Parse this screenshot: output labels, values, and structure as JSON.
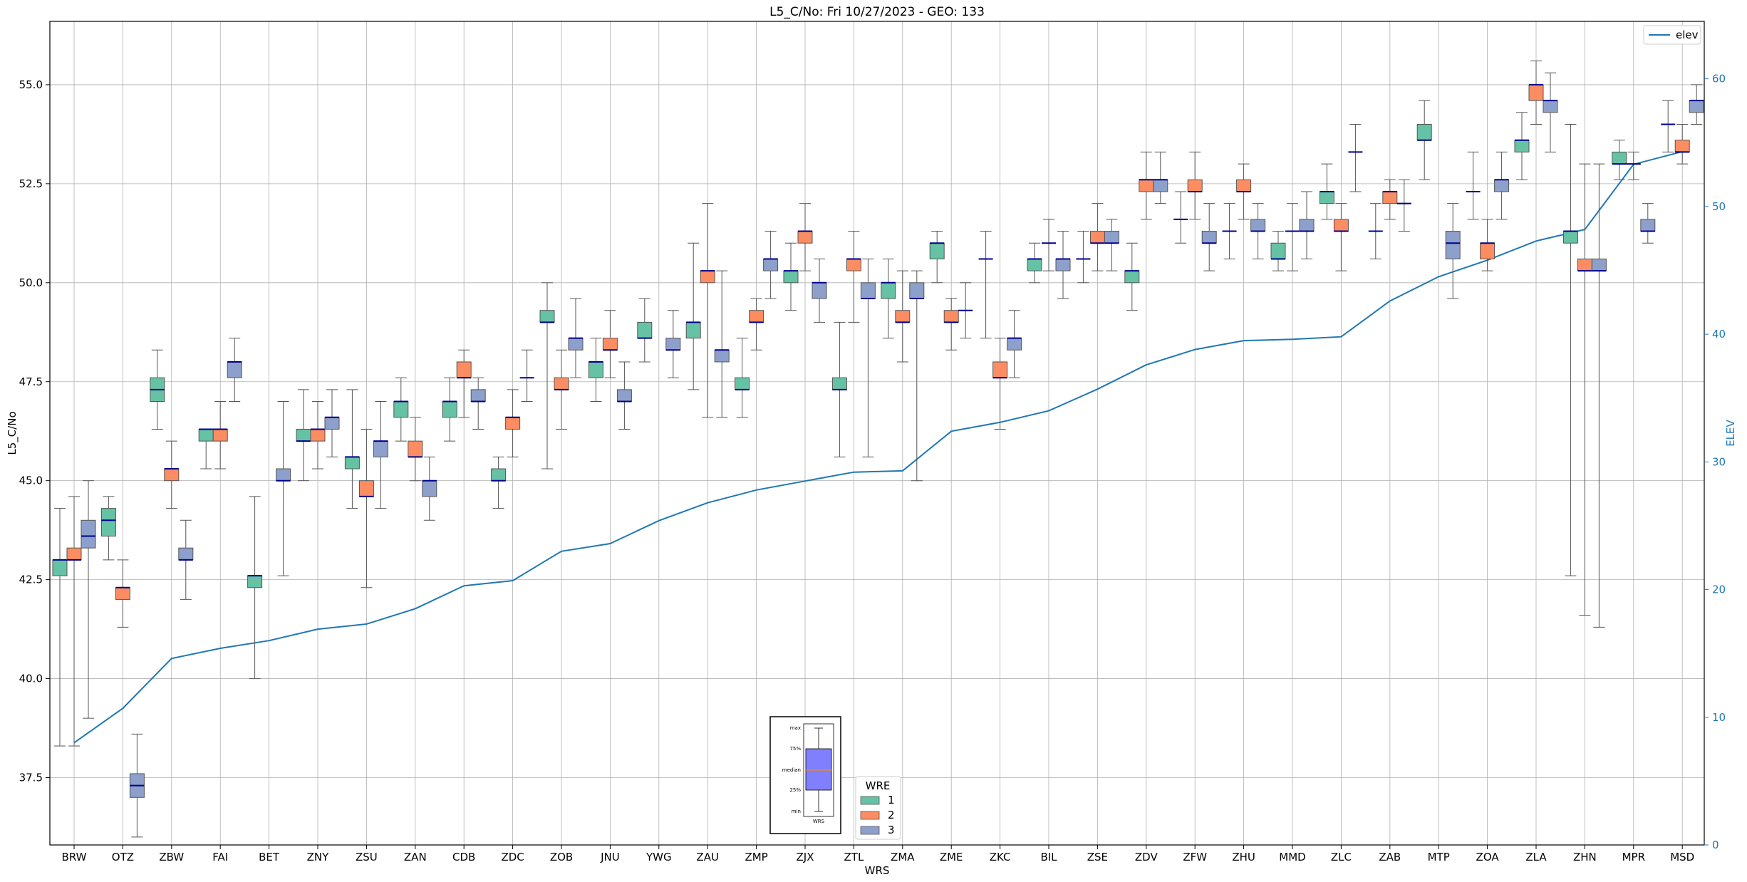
{
  "chart_data": {
    "type": "box",
    "title": "L5_C/No: Fri 10/27/2023 - GEO: 133",
    "xlabel": "WRS",
    "ylabel": "L5_C/No",
    "y2label": "ELEV",
    "ylim": [
      35.8,
      56.6
    ],
    "y2lim": [
      0,
      64.5
    ],
    "yticks": [
      "37.5",
      "40.0",
      "42.5",
      "45.0",
      "47.5",
      "50.0",
      "52.5",
      "55.0"
    ],
    "y2ticks": [
      "0",
      "10",
      "20",
      "30",
      "40",
      "50",
      "60"
    ],
    "grid": true,
    "categories": [
      "BRW",
      "OTZ",
      "ZBW",
      "FAI",
      "BET",
      "ZNY",
      "ZSU",
      "ZAN",
      "CDB",
      "ZDC",
      "ZOB",
      "JNU",
      "YWG",
      "ZAU",
      "ZMP",
      "ZJX",
      "ZTL",
      "ZMA",
      "ZME",
      "ZKC",
      "BIL",
      "ZSE",
      "ZDV",
      "ZFW",
      "ZHU",
      "MMD",
      "ZLC",
      "ZAB",
      "MTP",
      "ZOA",
      "ZLA",
      "ZHN",
      "MPR",
      "MSD"
    ],
    "series_colors": {
      "1": "#66c2a5",
      "2": "#fc8d62",
      "3": "#8da0cb"
    },
    "boxes": [
      {
        "station": "BRW",
        "wre": 1,
        "min": 38.3,
        "q1": 42.6,
        "median": 43.0,
        "q3": 43.0,
        "max": 44.3
      },
      {
        "station": "BRW",
        "wre": 2,
        "min": 38.3,
        "q1": 43.0,
        "median": 43.0,
        "q3": 43.3,
        "max": 44.6
      },
      {
        "station": "BRW",
        "wre": 3,
        "min": 39.0,
        "q1": 43.3,
        "median": 43.6,
        "q3": 44.0,
        "max": 45.0
      },
      {
        "station": "OTZ",
        "wre": 1,
        "min": 43.0,
        "q1": 43.6,
        "median": 44.0,
        "q3": 44.3,
        "max": 44.6
      },
      {
        "station": "OTZ",
        "wre": 2,
        "min": 41.3,
        "q1": 42.0,
        "median": 42.3,
        "q3": 42.3,
        "max": 43.0
      },
      {
        "station": "OTZ",
        "wre": 3,
        "min": 36.0,
        "q1": 37.0,
        "median": 37.3,
        "q3": 37.6,
        "max": 38.6
      },
      {
        "station": "ZBW",
        "wre": 1,
        "min": 46.3,
        "q1": 47.0,
        "median": 47.3,
        "q3": 47.6,
        "max": 48.3
      },
      {
        "station": "ZBW",
        "wre": 2,
        "min": 44.3,
        "q1": 45.0,
        "median": 45.3,
        "q3": 45.3,
        "max": 46.0
      },
      {
        "station": "ZBW",
        "wre": 3,
        "min": 42.0,
        "q1": 43.0,
        "median": 43.0,
        "q3": 43.3,
        "max": 44.0
      },
      {
        "station": "FAI",
        "wre": 1,
        "min": 45.3,
        "q1": 46.0,
        "median": 46.3,
        "q3": 46.3,
        "max": 46.3
      },
      {
        "station": "FAI",
        "wre": 2,
        "min": 45.3,
        "q1": 46.0,
        "median": 46.3,
        "q3": 46.3,
        "max": 47.0
      },
      {
        "station": "FAI",
        "wre": 3,
        "min": 47.0,
        "q1": 47.6,
        "median": 48.0,
        "q3": 48.0,
        "max": 48.6
      },
      {
        "station": "BET",
        "wre": 1,
        "min": 40.0,
        "q1": 42.3,
        "median": 42.6,
        "q3": 42.6,
        "max": 44.6
      },
      {
        "station": "BET",
        "wre": 3,
        "min": 42.6,
        "q1": 45.0,
        "median": 45.0,
        "q3": 45.3,
        "max": 47.0
      },
      {
        "station": "ZNY",
        "wre": 1,
        "min": 45.0,
        "q1": 46.0,
        "median": 46.0,
        "q3": 46.3,
        "max": 47.3
      },
      {
        "station": "ZNY",
        "wre": 2,
        "min": 45.3,
        "q1": 46.0,
        "median": 46.3,
        "q3": 46.3,
        "max": 47.0
      },
      {
        "station": "ZNY",
        "wre": 3,
        "min": 45.6,
        "q1": 46.3,
        "median": 46.6,
        "q3": 46.6,
        "max": 47.3
      },
      {
        "station": "ZSU",
        "wre": 1,
        "min": 44.3,
        "q1": 45.3,
        "median": 45.6,
        "q3": 45.6,
        "max": 47.3
      },
      {
        "station": "ZSU",
        "wre": 2,
        "min": 42.3,
        "q1": 44.6,
        "median": 44.6,
        "q3": 45.0,
        "max": 46.3
      },
      {
        "station": "ZSU",
        "wre": 3,
        "min": 44.3,
        "q1": 45.6,
        "median": 46.0,
        "q3": 46.0,
        "max": 47.0
      },
      {
        "station": "ZAN",
        "wre": 1,
        "min": 46.0,
        "q1": 46.6,
        "median": 47.0,
        "q3": 47.0,
        "max": 47.6
      },
      {
        "station": "ZAN",
        "wre": 2,
        "min": 45.0,
        "q1": 45.6,
        "median": 45.6,
        "q3": 46.0,
        "max": 46.6
      },
      {
        "station": "ZAN",
        "wre": 3,
        "min": 44.0,
        "q1": 44.6,
        "median": 45.0,
        "q3": 45.0,
        "max": 45.6
      },
      {
        "station": "CDB",
        "wre": 1,
        "min": 46.0,
        "q1": 46.6,
        "median": 47.0,
        "q3": 47.0,
        "max": 47.6
      },
      {
        "station": "CDB",
        "wre": 2,
        "min": 46.6,
        "q1": 47.6,
        "median": 47.6,
        "q3": 48.0,
        "max": 48.3
      },
      {
        "station": "CDB",
        "wre": 3,
        "min": 46.3,
        "q1": 47.0,
        "median": 47.0,
        "q3": 47.3,
        "max": 47.6
      },
      {
        "station": "ZDC",
        "wre": 1,
        "min": 44.3,
        "q1": 45.0,
        "median": 45.0,
        "q3": 45.3,
        "max": 45.6
      },
      {
        "station": "ZDC",
        "wre": 2,
        "min": 45.6,
        "q1": 46.3,
        "median": 46.6,
        "q3": 46.6,
        "max": 47.3
      },
      {
        "station": "ZDC",
        "wre": 3,
        "min": 47.0,
        "q1": 47.6,
        "median": 47.6,
        "q3": 47.6,
        "max": 48.3
      },
      {
        "station": "ZOB",
        "wre": 1,
        "min": 45.3,
        "q1": 49.0,
        "median": 49.0,
        "q3": 49.3,
        "max": 50.0
      },
      {
        "station": "ZOB",
        "wre": 2,
        "min": 46.3,
        "q1": 47.3,
        "median": 47.3,
        "q3": 47.6,
        "max": 48.3
      },
      {
        "station": "ZOB",
        "wre": 3,
        "min": 47.6,
        "q1": 48.3,
        "median": 48.6,
        "q3": 48.6,
        "max": 49.6
      },
      {
        "station": "JNU",
        "wre": 1,
        "min": 47.0,
        "q1": 47.6,
        "median": 48.0,
        "q3": 48.0,
        "max": 48.6
      },
      {
        "station": "JNU",
        "wre": 2,
        "min": 47.6,
        "q1": 48.3,
        "median": 48.3,
        "q3": 48.6,
        "max": 49.3
      },
      {
        "station": "JNU",
        "wre": 3,
        "min": 46.3,
        "q1": 47.0,
        "median": 47.0,
        "q3": 47.3,
        "max": 48.0
      },
      {
        "station": "YWG",
        "wre": 1,
        "min": 48.0,
        "q1": 48.6,
        "median": 48.6,
        "q3": 49.0,
        "max": 49.6
      },
      {
        "station": "YWG",
        "wre": 3,
        "min": 47.6,
        "q1": 48.3,
        "median": 48.3,
        "q3": 48.6,
        "max": 49.3
      },
      {
        "station": "ZAU",
        "wre": 1,
        "min": 47.3,
        "q1": 48.6,
        "median": 49.0,
        "q3": 49.0,
        "max": 51.0
      },
      {
        "station": "ZAU",
        "wre": 2,
        "min": 46.6,
        "q1": 50.0,
        "median": 50.3,
        "q3": 50.3,
        "max": 52.0
      },
      {
        "station": "ZAU",
        "wre": 3,
        "min": 46.6,
        "q1": 48.0,
        "median": 48.3,
        "q3": 48.3,
        "max": 50.3
      },
      {
        "station": "ZMP",
        "wre": 1,
        "min": 46.6,
        "q1": 47.3,
        "median": 47.3,
        "q3": 47.6,
        "max": 48.6
      },
      {
        "station": "ZMP",
        "wre": 2,
        "min": 48.3,
        "q1": 49.0,
        "median": 49.0,
        "q3": 49.3,
        "max": 49.6
      },
      {
        "station": "ZMP",
        "wre": 3,
        "min": 49.6,
        "q1": 50.3,
        "median": 50.6,
        "q3": 50.6,
        "max": 51.3
      },
      {
        "station": "ZJX",
        "wre": 1,
        "min": 49.3,
        "q1": 50.0,
        "median": 50.3,
        "q3": 50.3,
        "max": 51.0
      },
      {
        "station": "ZJX",
        "wre": 2,
        "min": 50.3,
        "q1": 51.0,
        "median": 51.3,
        "q3": 51.3,
        "max": 52.0
      },
      {
        "station": "ZJX",
        "wre": 3,
        "min": 49.0,
        "q1": 49.6,
        "median": 50.0,
        "q3": 50.0,
        "max": 50.6
      },
      {
        "station": "ZTL",
        "wre": 1,
        "min": 45.6,
        "q1": 47.3,
        "median": 47.3,
        "q3": 47.6,
        "max": 49.0
      },
      {
        "station": "ZTL",
        "wre": 2,
        "min": 49.0,
        "q1": 50.3,
        "median": 50.6,
        "q3": 50.6,
        "max": 51.3
      },
      {
        "station": "ZTL",
        "wre": 3,
        "min": 45.6,
        "q1": 49.6,
        "median": 49.6,
        "q3": 50.0,
        "max": 50.6
      },
      {
        "station": "ZMA",
        "wre": 1,
        "min": 48.6,
        "q1": 49.6,
        "median": 50.0,
        "q3": 50.0,
        "max": 50.6
      },
      {
        "station": "ZMA",
        "wre": 2,
        "min": 48.0,
        "q1": 49.0,
        "median": 49.0,
        "q3": 49.3,
        "max": 50.3
      },
      {
        "station": "ZMA",
        "wre": 3,
        "min": 45.0,
        "q1": 49.6,
        "median": 49.6,
        "q3": 50.0,
        "max": 50.3
      },
      {
        "station": "ZME",
        "wre": 1,
        "min": 50.0,
        "q1": 50.6,
        "median": 51.0,
        "q3": 51.0,
        "max": 51.3
      },
      {
        "station": "ZME",
        "wre": 2,
        "min": 48.3,
        "q1": 49.0,
        "median": 49.0,
        "q3": 49.3,
        "max": 49.6
      },
      {
        "station": "ZME",
        "wre": 3,
        "min": 48.6,
        "q1": 49.3,
        "median": 49.3,
        "q3": 49.3,
        "max": 50.0
      },
      {
        "station": "ZKC",
        "wre": 1,
        "min": 48.6,
        "q1": 50.6,
        "median": 50.6,
        "q3": 50.6,
        "max": 51.3
      },
      {
        "station": "ZKC",
        "wre": 2,
        "min": 46.3,
        "q1": 47.6,
        "median": 47.6,
        "q3": 48.0,
        "max": 48.6
      },
      {
        "station": "ZKC",
        "wre": 3,
        "min": 47.6,
        "q1": 48.3,
        "median": 48.6,
        "q3": 48.6,
        "max": 49.3
      },
      {
        "station": "BIL",
        "wre": 1,
        "min": 50.0,
        "q1": 50.3,
        "median": 50.6,
        "q3": 50.6,
        "max": 51.0
      },
      {
        "station": "BIL",
        "wre": 2,
        "min": 50.3,
        "q1": 51.0,
        "median": 51.0,
        "q3": 51.0,
        "max": 51.6
      },
      {
        "station": "BIL",
        "wre": 3,
        "min": 49.6,
        "q1": 50.3,
        "median": 50.6,
        "q3": 50.6,
        "max": 51.3
      },
      {
        "station": "ZSE",
        "wre": 1,
        "min": 50.0,
        "q1": 50.6,
        "median": 50.6,
        "q3": 50.6,
        "max": 51.3
      },
      {
        "station": "ZSE",
        "wre": 2,
        "min": 50.3,
        "q1": 51.0,
        "median": 51.0,
        "q3": 51.3,
        "max": 52.0
      },
      {
        "station": "ZSE",
        "wre": 3,
        "min": 50.3,
        "q1": 51.0,
        "median": 51.0,
        "q3": 51.3,
        "max": 51.6
      },
      {
        "station": "ZDV",
        "wre": 1,
        "min": 49.3,
        "q1": 50.0,
        "median": 50.3,
        "q3": 50.3,
        "max": 51.0
      },
      {
        "station": "ZDV",
        "wre": 2,
        "min": 51.6,
        "q1": 52.3,
        "median": 52.6,
        "q3": 52.6,
        "max": 53.3
      },
      {
        "station": "ZDV",
        "wre": 3,
        "min": 52.0,
        "q1": 52.3,
        "median": 52.6,
        "q3": 52.6,
        "max": 53.3
      },
      {
        "station": "ZFW",
        "wre": 1,
        "min": 51.0,
        "q1": 51.6,
        "median": 51.6,
        "q3": 51.6,
        "max": 52.3
      },
      {
        "station": "ZFW",
        "wre": 2,
        "min": 51.6,
        "q1": 52.3,
        "median": 52.3,
        "q3": 52.6,
        "max": 53.3
      },
      {
        "station": "ZFW",
        "wre": 3,
        "min": 50.3,
        "q1": 51.0,
        "median": 51.0,
        "q3": 51.3,
        "max": 52.0
      },
      {
        "station": "ZHU",
        "wre": 1,
        "min": 50.6,
        "q1": 51.3,
        "median": 51.3,
        "q3": 51.3,
        "max": 52.0
      },
      {
        "station": "ZHU",
        "wre": 2,
        "min": 51.6,
        "q1": 52.3,
        "median": 52.3,
        "q3": 52.6,
        "max": 53.0
      },
      {
        "station": "ZHU",
        "wre": 3,
        "min": 50.6,
        "q1": 51.3,
        "median": 51.3,
        "q3": 51.6,
        "max": 52.0
      },
      {
        "station": "MMD",
        "wre": 1,
        "min": 50.3,
        "q1": 50.6,
        "median": 50.6,
        "q3": 51.0,
        "max": 51.3
      },
      {
        "station": "MMD",
        "wre": 2,
        "min": 50.3,
        "q1": 51.3,
        "median": 51.3,
        "q3": 51.3,
        "max": 52.0
      },
      {
        "station": "MMD",
        "wre": 3,
        "min": 50.6,
        "q1": 51.3,
        "median": 51.3,
        "q3": 51.6,
        "max": 52.3
      },
      {
        "station": "ZLC",
        "wre": 1,
        "min": 51.6,
        "q1": 52.0,
        "median": 52.3,
        "q3": 52.3,
        "max": 53.0
      },
      {
        "station": "ZLC",
        "wre": 2,
        "min": 50.3,
        "q1": 51.3,
        "median": 51.3,
        "q3": 51.6,
        "max": 52.0
      },
      {
        "station": "ZLC",
        "wre": 3,
        "min": 52.3,
        "q1": 53.3,
        "median": 53.3,
        "q3": 53.3,
        "max": 54.0
      },
      {
        "station": "ZAB",
        "wre": 1,
        "min": 50.6,
        "q1": 51.3,
        "median": 51.3,
        "q3": 51.3,
        "max": 52.0
      },
      {
        "station": "ZAB",
        "wre": 2,
        "min": 51.6,
        "q1": 52.0,
        "median": 52.3,
        "q3": 52.3,
        "max": 52.6
      },
      {
        "station": "ZAB",
        "wre": 3,
        "min": 51.3,
        "q1": 52.0,
        "median": 52.0,
        "q3": 52.0,
        "max": 52.6
      },
      {
        "station": "MTP",
        "wre": 1,
        "min": 52.6,
        "q1": 53.6,
        "median": 53.6,
        "q3": 54.0,
        "max": 54.6
      },
      {
        "station": "MTP",
        "wre": 3,
        "min": 49.6,
        "q1": 50.6,
        "median": 51.0,
        "q3": 51.3,
        "max": 52.0
      },
      {
        "station": "ZOA",
        "wre": 2,
        "min": 50.3,
        "q1": 50.6,
        "median": 51.0,
        "q3": 51.0,
        "max": 51.6
      },
      {
        "station": "ZOA",
        "wre": 1,
        "min": 51.6,
        "q1": 52.3,
        "median": 52.3,
        "q3": 52.3,
        "max": 53.3
      },
      {
        "station": "ZOA",
        "wre": 3,
        "min": 51.6,
        "q1": 52.3,
        "median": 52.6,
        "q3": 52.6,
        "max": 53.3
      },
      {
        "station": "ZLA",
        "wre": 1,
        "min": 52.6,
        "q1": 53.3,
        "median": 53.6,
        "q3": 53.6,
        "max": 54.3
      },
      {
        "station": "ZLA",
        "wre": 2,
        "min": 54.0,
        "q1": 54.6,
        "median": 55.0,
        "q3": 55.0,
        "max": 55.6
      },
      {
        "station": "ZLA",
        "wre": 3,
        "min": 53.3,
        "q1": 54.3,
        "median": 54.6,
        "q3": 54.6,
        "max": 55.3
      },
      {
        "station": "ZHN",
        "wre": 1,
        "min": 42.6,
        "q1": 51.0,
        "median": 51.3,
        "q3": 51.3,
        "max": 54.0
      },
      {
        "station": "ZHN",
        "wre": 2,
        "min": 41.6,
        "q1": 50.3,
        "median": 50.3,
        "q3": 50.6,
        "max": 53.0
      },
      {
        "station": "ZHN",
        "wre": 3,
        "min": 41.3,
        "q1": 50.3,
        "median": 50.3,
        "q3": 50.6,
        "max": 53.0
      },
      {
        "station": "MPR",
        "wre": 1,
        "min": 52.6,
        "q1": 53.0,
        "median": 53.0,
        "q3": 53.3,
        "max": 53.6
      },
      {
        "station": "MPR",
        "wre": 2,
        "min": 52.6,
        "q1": 53.0,
        "median": 53.0,
        "q3": 53.0,
        "max": 53.3
      },
      {
        "station": "MPR",
        "wre": 3,
        "min": 51.0,
        "q1": 51.3,
        "median": 51.3,
        "q3": 51.6,
        "max": 52.0
      },
      {
        "station": "MSD",
        "wre": 1,
        "min": 53.3,
        "q1": 54.0,
        "median": 54.0,
        "q3": 54.0,
        "max": 54.6
      },
      {
        "station": "MSD",
        "wre": 2,
        "min": 53.0,
        "q1": 53.3,
        "median": 53.3,
        "q3": 53.6,
        "max": 54.0
      },
      {
        "station": "MSD",
        "wre": 3,
        "min": 54.0,
        "q1": 54.3,
        "median": 54.6,
        "q3": 54.6,
        "max": 55.0
      }
    ],
    "elev_series": {
      "name": "elev",
      "color": "#1f77b4",
      "values": [
        8.0,
        10.7,
        14.6,
        15.4,
        16.0,
        16.9,
        17.3,
        18.5,
        20.3,
        20.7,
        23.0,
        23.6,
        25.4,
        26.8,
        27.8,
        28.5,
        29.2,
        29.3,
        32.4,
        33.1,
        34.0,
        35.7,
        37.6,
        38.8,
        39.5,
        39.6,
        39.8,
        42.6,
        44.5,
        45.8,
        47.3,
        48.2,
        53.3,
        54.3
      ]
    },
    "legends": {
      "elev_legend": {
        "label": "elev",
        "placement": "top-right"
      },
      "wre_legend": {
        "title": "WRE",
        "entries": [
          "1",
          "2",
          "3"
        ],
        "placement": "bottom-center"
      }
    },
    "inset": {
      "labels": [
        "max",
        "75%",
        "median",
        "25%",
        "min"
      ],
      "caption": "WRS",
      "box_color": "#8080ff",
      "median_color": "#ff8c00"
    }
  }
}
